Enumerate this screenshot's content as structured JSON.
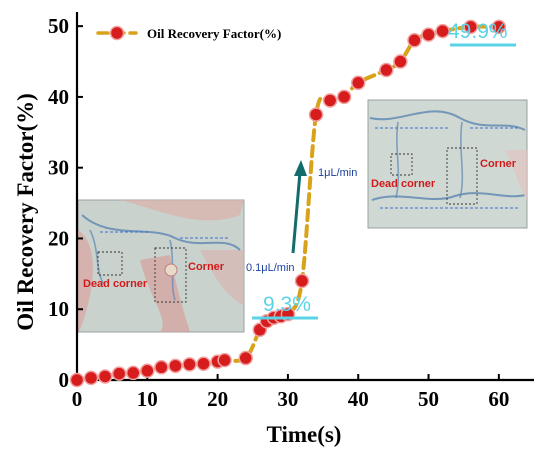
{
  "chart_data": {
    "type": "scatter",
    "xlabel": "Time(s)",
    "ylabel": "Oil Recovery Factor(%)",
    "xlim": [
      0,
      65
    ],
    "ylim": [
      0,
      52
    ],
    "xticks": [
      "0",
      "10",
      "20",
      "30",
      "40",
      "50",
      "60"
    ],
    "yticks": [
      "0",
      "10",
      "20",
      "30",
      "40",
      "50"
    ],
    "legend_position": "top-left",
    "grid": false,
    "series": [
      {
        "name": "Oil Recovery Factor(%)",
        "color": "#d61c1c",
        "fit_line_color": "#d9a21b",
        "x": [
          0,
          2,
          4,
          6,
          8,
          10,
          12,
          14,
          16,
          18,
          20,
          21,
          24,
          26,
          27,
          28,
          29,
          30,
          32,
          34,
          36,
          38,
          40,
          44,
          46,
          48,
          50,
          52,
          56,
          60
        ],
        "y": [
          0,
          0.3,
          0.5,
          0.9,
          1.0,
          1.3,
          1.8,
          2.0,
          2.2,
          2.3,
          2.6,
          2.8,
          3.1,
          7.1,
          8.3,
          8.8,
          9.0,
          9.3,
          14.0,
          37.5,
          39.5,
          40.0,
          42.0,
          43.8,
          45.0,
          48.0,
          48.8,
          49.3,
          49.9,
          49.9
        ]
      }
    ],
    "annotations": {
      "low_plateau": "9.3%",
      "high_plateau": "49.9%",
      "flow_rate_low": "0.1μL/min",
      "flow_rate_high": "1μL/min"
    },
    "insets": [
      {
        "dead_corner_label": "Dead corner",
        "corner_label": "Corner"
      },
      {
        "dead_corner_label": "Dead corner",
        "corner_label": "Corner"
      }
    ]
  },
  "colors": {
    "points": "#d61c1c",
    "fit_line": "#d9a21b",
    "callout": "#5ad3e6",
    "arrow": "#126c6c",
    "inset_label": "#d21a1a",
    "flow_text": "#1a3f9e"
  }
}
